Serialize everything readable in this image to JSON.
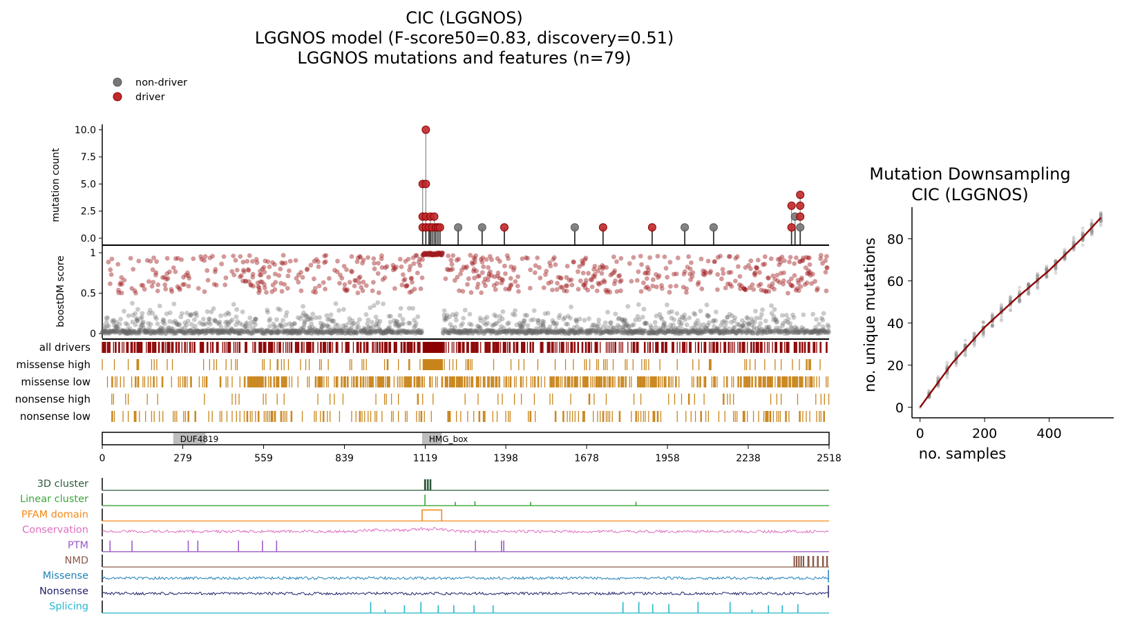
{
  "figure": {
    "title_lines": [
      "CIC (LGGNOS)",
      "LGGNOS model (F-score50=0.83, discovery=0.51)",
      "LGGNOS mutations and features (n=79)"
    ]
  },
  "chart_data": [
    {
      "type": "scatter",
      "name": "mutation-lollipop",
      "ylabel": "mutation count",
      "ylim": [
        0,
        10.5
      ],
      "yticks": [
        0.0,
        2.5,
        5.0,
        7.5,
        10.0
      ],
      "ytick_labels": [
        "0.0",
        "2.5",
        "5.0",
        "7.5",
        "10.0"
      ],
      "xlim": [
        0,
        2518
      ],
      "legend": {
        "placement": "top-left",
        "items": [
          {
            "label": "non-driver",
            "color": "#777777"
          },
          {
            "label": "driver",
            "color": "#c0292b"
          }
        ]
      },
      "points": [
        {
          "pos": 1110,
          "count": 5,
          "driver": true
        },
        {
          "pos": 1110,
          "count": 2,
          "driver": true
        },
        {
          "pos": 1110,
          "count": 1,
          "driver": true
        },
        {
          "pos": 1121,
          "count": 10,
          "driver": true
        },
        {
          "pos": 1121,
          "count": 5,
          "driver": true
        },
        {
          "pos": 1121,
          "count": 2,
          "driver": true
        },
        {
          "pos": 1121,
          "count": 1,
          "driver": true
        },
        {
          "pos": 1132,
          "count": 1,
          "driver": true
        },
        {
          "pos": 1137,
          "count": 2,
          "driver": true
        },
        {
          "pos": 1143,
          "count": 1,
          "driver": true
        },
        {
          "pos": 1150,
          "count": 2,
          "driver": true
        },
        {
          "pos": 1156,
          "count": 1,
          "driver": true
        },
        {
          "pos": 1163,
          "count": 1,
          "driver": true
        },
        {
          "pos": 1170,
          "count": 1,
          "driver": true
        },
        {
          "pos": 1233,
          "count": 1,
          "driver": false
        },
        {
          "pos": 1316,
          "count": 1,
          "driver": false
        },
        {
          "pos": 1393,
          "count": 1,
          "driver": true
        },
        {
          "pos": 1637,
          "count": 1,
          "driver": false
        },
        {
          "pos": 1735,
          "count": 1,
          "driver": true
        },
        {
          "pos": 1905,
          "count": 1,
          "driver": true
        },
        {
          "pos": 2018,
          "count": 1,
          "driver": false
        },
        {
          "pos": 2118,
          "count": 1,
          "driver": false
        },
        {
          "pos": 2388,
          "count": 3,
          "driver": true
        },
        {
          "pos": 2388,
          "count": 1,
          "driver": true
        },
        {
          "pos": 2400,
          "count": 2,
          "driver": false
        },
        {
          "pos": 2418,
          "count": 4,
          "driver": true
        },
        {
          "pos": 2418,
          "count": 3,
          "driver": true
        },
        {
          "pos": 2418,
          "count": 2,
          "driver": true
        },
        {
          "pos": 2418,
          "count": 1,
          "driver": false
        }
      ]
    },
    {
      "type": "scatter",
      "name": "boostdm-score",
      "ylabel": "boostDM score",
      "ylim": [
        0,
        1
      ],
      "yticks": [
        0,
        0.5,
        1
      ],
      "ytick_labels": [
        "0",
        "0.5",
        "1"
      ],
      "xlim": [
        0,
        2518
      ],
      "point_count": 2518,
      "driver_threshold": 0.5,
      "driver_enriched_regions": [
        [
          490,
          640
        ],
        [
          860,
          990
        ],
        [
          1050,
          1110
        ],
        [
          1190,
          1420
        ],
        [
          1550,
          1800
        ],
        [
          1850,
          1930
        ],
        [
          2220,
          2460
        ]
      ],
      "saturated_region": [
        1110,
        1180
      ]
    },
    {
      "type": "heatmap",
      "name": "consequence-tracks",
      "rows": [
        {
          "label": "all drivers",
          "color": "#8b0000",
          "density": 0.55,
          "solid": [
            1110,
            1180
          ]
        },
        {
          "label": "missense high",
          "color": "#c8841a",
          "density": 0.12,
          "solid": [
            1110,
            1180
          ]
        },
        {
          "label": "missense low",
          "color": "#c8841a",
          "density": 0.3
        },
        {
          "label": "nonsense high",
          "color": "#c8841a",
          "density": 0.08
        },
        {
          "label": "nonsense low",
          "color": "#c8841a",
          "density": 0.18
        }
      ]
    },
    {
      "type": "bar",
      "name": "pfam-domains",
      "domains": [
        {
          "label": "DUF4819",
          "start": 246,
          "end": 358
        },
        {
          "label": "HMG_box",
          "start": 1108,
          "end": 1176
        }
      ],
      "xlim": [
        0,
        2518
      ],
      "xticks": [
        0,
        279,
        559,
        839,
        1119,
        1398,
        1678,
        1958,
        2238,
        2518
      ],
      "xtick_labels": [
        "0",
        "279",
        "559",
        "839",
        "1119",
        "1398",
        "1678",
        "1958",
        "2238",
        "2518"
      ]
    },
    {
      "type": "line",
      "name": "feature-tracks",
      "tracks": [
        {
          "label": "3D cluster",
          "color": "#2d5a3a",
          "kind": "blocks",
          "blocks": [
            [
              1115,
              1122
            ],
            [
              1125,
              1131
            ],
            [
              1134,
              1140
            ]
          ]
        },
        {
          "label": "Linear cluster",
          "color": "#3aa63a",
          "kind": "spikes",
          "spikes": [
            [
              1118,
              1.0
            ],
            [
              1223,
              0.35
            ],
            [
              1291,
              0.4
            ],
            [
              1484,
              0.35
            ],
            [
              1849,
              0.35
            ]
          ]
        },
        {
          "label": "PFAM domain",
          "color": "#f5891b",
          "kind": "step",
          "segments": [
            [
              1108,
              1176
            ]
          ]
        },
        {
          "label": "Conservation",
          "color": "#de6ec0",
          "kind": "noise",
          "bump": [
            1150,
            0.35
          ]
        },
        {
          "label": "PTM",
          "color": "#9b5bc7",
          "kind": "spikes",
          "spikes": [
            [
              27,
              1
            ],
            [
              103,
              1
            ],
            [
              298,
              1
            ],
            [
              331,
              1
            ],
            [
              472,
              1
            ],
            [
              555,
              1
            ],
            [
              604,
              1
            ],
            [
              1293,
              1
            ],
            [
              1383,
              1
            ],
            [
              1391,
              1
            ]
          ]
        },
        {
          "label": "NMD",
          "color": "#8b5a4a",
          "kind": "blocks",
          "blocks": [
            [
              2395,
              2400
            ],
            [
              2403,
              2408
            ],
            [
              2411,
              2416
            ],
            [
              2419,
              2424
            ],
            [
              2427,
              2432
            ],
            [
              2443,
              2450
            ],
            [
              2460,
              2466
            ],
            [
              2476,
              2482
            ],
            [
              2494,
              2500
            ],
            [
              2508,
              2514
            ]
          ]
        },
        {
          "label": "Missense",
          "color": "#2080b8",
          "kind": "noise"
        },
        {
          "label": "Nonsense",
          "color": "#1e1f6b",
          "kind": "noise"
        },
        {
          "label": "Splicing",
          "color": "#26b6cc",
          "kind": "spikes",
          "spikes": [
            [
              930,
              1
            ],
            [
              980,
              0.3
            ],
            [
              1047,
              0.7
            ],
            [
              1104,
              1
            ],
            [
              1164,
              0.7
            ],
            [
              1218,
              0.7
            ],
            [
              1288,
              0.7
            ],
            [
              1354,
              0.7
            ],
            [
              1804,
              1
            ],
            [
              1859,
              1
            ],
            [
              1907,
              0.8
            ],
            [
              1963,
              0.8
            ],
            [
              2064,
              1
            ],
            [
              2175,
              1
            ],
            [
              2251,
              0.3
            ],
            [
              2308,
              0.7
            ],
            [
              2356,
              0.7
            ],
            [
              2410,
              0.8
            ]
          ]
        }
      ]
    },
    {
      "type": "scatter",
      "name": "mutation-downsampling",
      "title_lines": [
        "Mutation Downsampling",
        "CIC (LGGNOS)"
      ],
      "xlabel": "no. samples",
      "ylabel": "no. unique mutations",
      "xlim": [
        -25,
        600
      ],
      "ylim": [
        -5,
        95
      ],
      "xticks": [
        0,
        200,
        400
      ],
      "yticks": [
        0,
        20,
        40,
        60,
        80
      ],
      "steps": [
        0,
        28,
        56,
        84,
        112,
        140,
        168,
        196,
        224,
        252,
        280,
        308,
        336,
        364,
        392,
        420,
        448,
        476,
        504,
        532,
        560
      ],
      "spread": 5,
      "fit": {
        "color": "#8b0000",
        "x": [
          0,
          100,
          200,
          300,
          400,
          500,
          560
        ],
        "y": [
          0,
          21,
          38,
          52,
          65,
          80,
          90
        ]
      }
    }
  ]
}
